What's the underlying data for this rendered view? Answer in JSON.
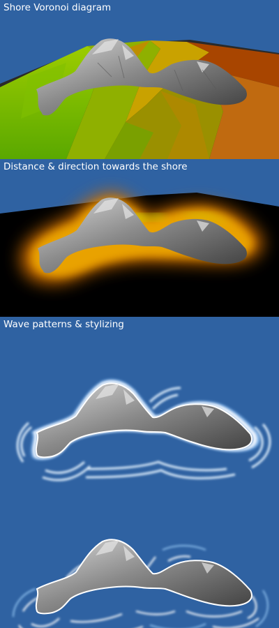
{
  "panels": [
    {
      "caption": "Shore Voronoi diagram"
    },
    {
      "caption": "Distance & direction towards the shore"
    },
    {
      "caption": "Wave patterns & stylizing"
    }
  ],
  "colors": {
    "background": "#2f62a2",
    "ground_black": "#000000",
    "voronoi_green": "#69b800",
    "voronoi_orange": "#d86a00",
    "voronoi_brown": "#8a3a05",
    "distance_orange": "#e08a10",
    "distance_yellow": "#c8d200",
    "wave_white": "#ffffff",
    "wave_light_blue": "#9cc6f0",
    "rock_gray": "#8a8a8a"
  }
}
